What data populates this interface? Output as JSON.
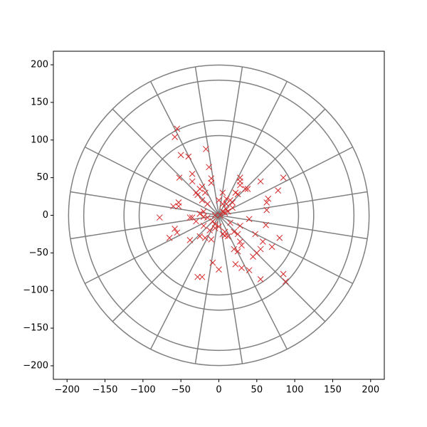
{
  "chart_data": {
    "type": "scatter",
    "color": "#d62728",
    "marker": "x",
    "xlim": [
      -218,
      218
    ],
    "ylim": [
      -218,
      218
    ],
    "xticks": [
      {
        "value": -200,
        "label": "−200"
      },
      {
        "value": -150,
        "label": "−150"
      },
      {
        "value": -100,
        "label": "−100"
      },
      {
        "value": -50,
        "label": "−50"
      },
      0,
      50,
      100,
      150,
      200
    ],
    "yticks": [
      {
        "value": -200,
        "label": "−200"
      },
      {
        "value": -150,
        "label": "−150"
      },
      {
        "value": -100,
        "label": "−100"
      },
      {
        "value": -50,
        "label": "−50"
      },
      0,
      50,
      100,
      150,
      200
    ],
    "x": [
      -55,
      -58,
      -17,
      -50,
      -40,
      -13,
      -35,
      -52,
      -35,
      -10,
      -10,
      -22,
      -25,
      -30,
      -28,
      -18,
      -53,
      -53,
      -60,
      -22,
      -15,
      -20,
      -25,
      -20,
      -35,
      -30,
      -20,
      -38,
      -78,
      -58,
      -55,
      -65,
      -38,
      -25,
      -18,
      -10,
      -5,
      -8,
      -5,
      0,
      -28,
      -22,
      -8,
      0,
      5,
      8,
      12,
      5,
      10,
      15,
      18,
      5,
      10,
      5,
      8,
      12,
      2,
      15,
      20,
      25,
      28,
      30,
      28,
      20,
      25,
      22,
      30,
      40,
      45,
      50,
      55,
      48,
      58,
      40,
      35,
      28,
      28,
      28,
      38,
      22,
      55,
      63,
      63,
      65,
      78,
      85,
      80,
      70,
      62,
      55,
      85,
      88,
      10,
      0,
      -5,
      -12,
      -15,
      8,
      18,
      25
    ],
    "y": [
      115,
      104,
      88,
      80,
      78,
      64,
      55,
      50,
      45,
      49,
      43,
      38,
      35,
      30,
      27,
      30,
      17,
      12,
      12,
      20,
      15,
      5,
      2,
      -2,
      -3,
      -8,
      -14,
      -3,
      -3,
      -18,
      -23,
      -30,
      -33,
      -28,
      -30,
      -32,
      -17,
      -8,
      -12,
      -15,
      -82,
      -82,
      -63,
      -72,
      -25,
      -27,
      -28,
      30,
      22,
      20,
      17,
      15,
      8,
      5,
      3,
      5,
      0,
      -10,
      -22,
      -25,
      -35,
      -40,
      -14,
      -45,
      -48,
      -65,
      -70,
      -73,
      -55,
      -50,
      -45,
      -25,
      -35,
      -5,
      35,
      40,
      45,
      50,
      35,
      30,
      45,
      7,
      17,
      22,
      33,
      50,
      -30,
      -42,
      -13,
      -85,
      -78,
      -88,
      15,
      20,
      0,
      -20,
      -3,
      -22,
      10,
      28
    ]
  }
}
